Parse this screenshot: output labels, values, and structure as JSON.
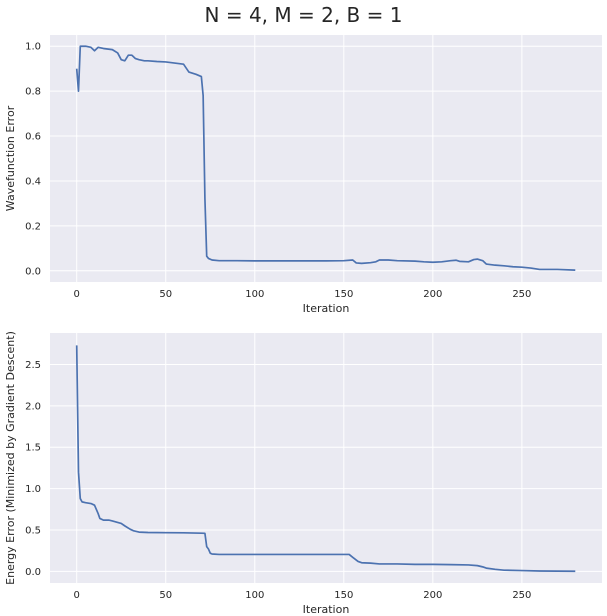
{
  "figure": {
    "title": "N = 4, M = 2, B = 1"
  },
  "colors": {
    "axes_bg": "#eaeaf2",
    "grid": "#ffffff",
    "line": "#4c72b0",
    "text": "#262626"
  },
  "chart_data": [
    {
      "type": "line",
      "title": "",
      "xlabel": "Iteration",
      "ylabel": "Wavefunction Error",
      "xlim": [
        -15,
        295
      ],
      "ylim": [
        -0.05,
        1.05
      ],
      "xticks": [
        0,
        50,
        100,
        150,
        200,
        250
      ],
      "yticks": [
        0.0,
        0.2,
        0.4,
        0.6,
        0.8,
        1.0
      ],
      "ytick_labels": [
        "0.0",
        "0.2",
        "0.4",
        "0.6",
        "0.8",
        "1.0"
      ],
      "grid": true,
      "series": [
        {
          "x": [
            0,
            1,
            2,
            5,
            8,
            10,
            12,
            15,
            20,
            23,
            25,
            27,
            29,
            31,
            33,
            35,
            38,
            40,
            45,
            50,
            55,
            60,
            63,
            65,
            67,
            70,
            71,
            72,
            73,
            74,
            76,
            80,
            90,
            100,
            120,
            140,
            150,
            155,
            157,
            160,
            165,
            168,
            170,
            175,
            180,
            190,
            195,
            200,
            205,
            210,
            213,
            215,
            220,
            223,
            225,
            228,
            230,
            235,
            240,
            245,
            250,
            255,
            260,
            270,
            280
          ],
          "y": [
            0.9,
            0.8,
            1.0,
            1.0,
            0.995,
            0.98,
            0.995,
            0.99,
            0.985,
            0.97,
            0.94,
            0.935,
            0.96,
            0.96,
            0.945,
            0.94,
            0.935,
            0.935,
            0.932,
            0.93,
            0.925,
            0.92,
            0.885,
            0.88,
            0.875,
            0.865,
            0.78,
            0.32,
            0.065,
            0.055,
            0.048,
            0.045,
            0.045,
            0.044,
            0.044,
            0.044,
            0.045,
            0.048,
            0.035,
            0.033,
            0.036,
            0.04,
            0.048,
            0.048,
            0.045,
            0.043,
            0.04,
            0.038,
            0.04,
            0.045,
            0.047,
            0.042,
            0.04,
            0.05,
            0.052,
            0.045,
            0.03,
            0.025,
            0.022,
            0.018,
            0.016,
            0.012,
            0.006,
            0.006,
            0.003
          ]
        }
      ]
    },
    {
      "type": "line",
      "title": "",
      "xlabel": "Iteration",
      "ylabel": "Energy Error (Minimized by Gradient Descent)",
      "xlim": [
        -15,
        295
      ],
      "ylim": [
        -0.14,
        2.88
      ],
      "xticks": [
        0,
        50,
        100,
        150,
        200,
        250
      ],
      "yticks": [
        0.0,
        0.5,
        1.0,
        1.5,
        2.0,
        2.5
      ],
      "ytick_labels": [
        "0.0",
        "0.5",
        "1.0",
        "1.5",
        "2.0",
        "2.5"
      ],
      "grid": true,
      "series": [
        {
          "x": [
            0,
            1,
            2,
            3,
            5,
            8,
            10,
            12,
            13,
            15,
            18,
            20,
            25,
            27,
            30,
            32,
            35,
            40,
            50,
            60,
            70,
            72,
            73,
            74,
            75,
            76,
            80,
            90,
            100,
            120,
            140,
            150,
            153,
            155,
            158,
            160,
            165,
            170,
            175,
            180,
            190,
            200,
            210,
            220,
            225,
            228,
            230,
            235,
            240,
            250,
            260,
            270,
            280
          ],
          "y": [
            2.73,
            1.2,
            0.88,
            0.84,
            0.83,
            0.82,
            0.8,
            0.7,
            0.64,
            0.62,
            0.62,
            0.61,
            0.58,
            0.55,
            0.51,
            0.49,
            0.475,
            0.47,
            0.468,
            0.466,
            0.462,
            0.46,
            0.3,
            0.27,
            0.22,
            0.21,
            0.205,
            0.205,
            0.205,
            0.205,
            0.205,
            0.205,
            0.205,
            0.17,
            0.12,
            0.105,
            0.1,
            0.09,
            0.09,
            0.09,
            0.085,
            0.085,
            0.082,
            0.078,
            0.07,
            0.055,
            0.04,
            0.025,
            0.015,
            0.01,
            0.005,
            0.003,
            0.002
          ]
        }
      ]
    }
  ]
}
